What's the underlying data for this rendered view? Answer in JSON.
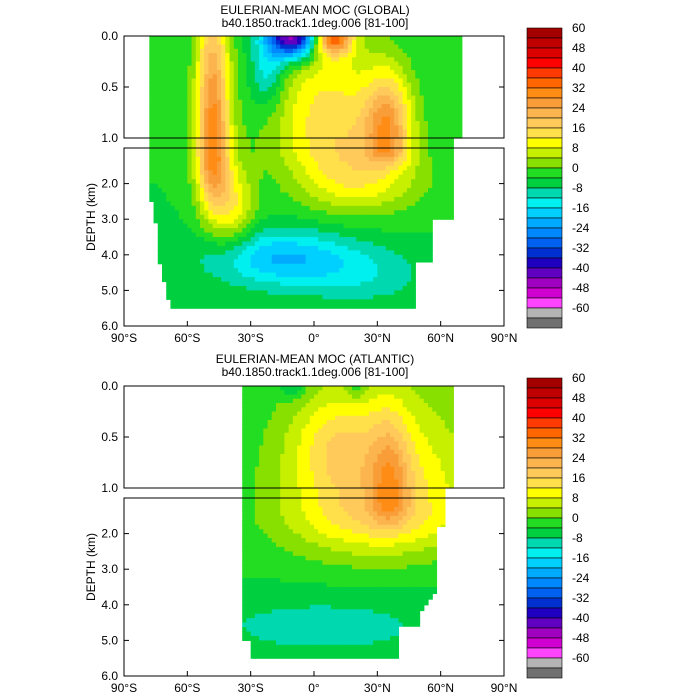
{
  "chart_data": [
    {
      "type": "heatmap",
      "title": "EULERIAN-MEAN MOC (GLOBAL)",
      "subtitle": "b40.1850.track1.1deg.006 [81-100]",
      "ylabel": "DEPTH (km)",
      "x_ticks": [
        "90°S",
        "60°S",
        "30°S",
        "0°",
        "30°N",
        "60°N",
        "90°N"
      ],
      "y_ticks_upper": [
        "0.0",
        "0.5",
        "1.0"
      ],
      "y_ticks_lower": [
        "2.0",
        "3.0",
        "4.0",
        "5.0",
        "6.0"
      ],
      "xlim": [
        -90,
        90
      ],
      "ylim_km": [
        0,
        6
      ],
      "upper_panel_km": [
        0,
        1
      ],
      "lower_panel_km": [
        1,
        6
      ],
      "contour_interval": 4,
      "features": [
        {
          "lat": -48,
          "depth_km": 0.9,
          "value": 28
        },
        {
          "lat": -40,
          "depth_km": 2.5,
          "value": 12
        },
        {
          "lat": -10,
          "depth_km": 0.03,
          "value": -40
        },
        {
          "lat": 0,
          "depth_km": 0.3,
          "value": 12
        },
        {
          "lat": 10,
          "depth_km": 0.05,
          "value": 32
        },
        {
          "lat": 35,
          "depth_km": 0.9,
          "value": 28
        },
        {
          "lat": 30,
          "depth_km": 1.6,
          "value": 20
        },
        {
          "lat": -15,
          "depth_km": 4.0,
          "value": -12
        }
      ]
    },
    {
      "type": "heatmap",
      "title": "EULERIAN-MEAN MOC (ATLANTIC)",
      "subtitle": "b40.1850.track1.1deg.006 [81-100]",
      "ylabel": "DEPTH (km)",
      "x_ticks": [
        "90°S",
        "60°S",
        "30°S",
        "0°",
        "30°N",
        "60°N",
        "90°N"
      ],
      "y_ticks_upper": [
        "0.0",
        "0.5",
        "1.0"
      ],
      "y_ticks_lower": [
        "2.0",
        "3.0",
        "4.0",
        "5.0",
        "6.0"
      ],
      "xlim": [
        -90,
        90
      ],
      "ylim_km": [
        0,
        6
      ],
      "upper_panel_km": [
        0,
        1
      ],
      "lower_panel_km": [
        1,
        6
      ],
      "contour_interval": 4,
      "features": [
        {
          "lat": 35,
          "depth_km": 1.0,
          "value": 28
        },
        {
          "lat": 10,
          "depth_km": 0.6,
          "value": 16
        },
        {
          "lat": 5,
          "depth_km": 4.5,
          "value": -4
        }
      ]
    }
  ],
  "colorbar": {
    "labels": [
      "60",
      "48",
      "40",
      "32",
      "24",
      "16",
      "8",
      "0",
      "-8",
      "-16",
      "-24",
      "-32",
      "-40",
      "-48",
      "-60"
    ],
    "levels": [
      56,
      52,
      48,
      44,
      40,
      36,
      32,
      28,
      24,
      20,
      16,
      12,
      8,
      4,
      0,
      -4,
      -8,
      -12,
      -16,
      -20,
      -24,
      -28,
      -32,
      -36,
      -40,
      -44,
      -48,
      -52,
      -56
    ],
    "colors": [
      "#a40000",
      "#c00000",
      "#dd0000",
      "#ff0000",
      "#ff3a00",
      "#ff6600",
      "#ff8c14",
      "#f99d38",
      "#fbb44e",
      "#ffca5a",
      "#ffe04a",
      "#ffff00",
      "#c6f000",
      "#88e000",
      "#22dd22",
      "#00d040",
      "#00d8b0",
      "#00f0f0",
      "#00d0ff",
      "#00aaff",
      "#0088ff",
      "#0060f0",
      "#0030d0",
      "#2000c0",
      "#6000c0",
      "#a000c0",
      "#d000d0",
      "#ff44ff",
      "#b4b4b4",
      "#707070"
    ]
  }
}
